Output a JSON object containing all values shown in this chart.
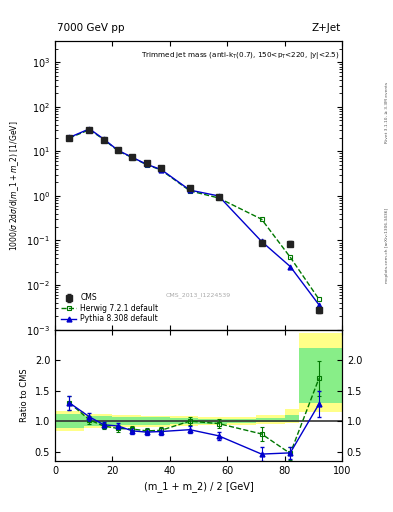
{
  "title_top": "7000 GeV pp",
  "title_right": "Z+Jet",
  "watermark": "CMS_2013_I1224539",
  "ylabel_ratio": "Ratio to CMS",
  "xlabel": "(m_1 + m_2) / 2 [GeV]",
  "right_label": "mcplots.cern.ch [arXiv:1306.3436]",
  "right_label2": "Rivet 3.1.10, ≥ 3.3M events",
  "x_main": [
    5,
    12,
    17,
    22,
    27,
    32,
    37,
    47,
    57,
    72,
    82,
    92
  ],
  "cms_y": [
    20.0,
    30.0,
    18.0,
    11.0,
    7.5,
    5.5,
    4.2,
    1.5,
    0.95,
    0.09,
    0.085,
    0.0028
  ],
  "cms_yerr": [
    1.5,
    2.0,
    1.2,
    0.7,
    0.5,
    0.4,
    0.3,
    0.1,
    0.07,
    0.012,
    0.01,
    0.0004
  ],
  "herwig_x": [
    5,
    12,
    17,
    22,
    27,
    32,
    37,
    47,
    57,
    72,
    82,
    92
  ],
  "herwig_y": [
    20.0,
    30.5,
    18.5,
    10.2,
    7.2,
    5.0,
    3.8,
    1.3,
    0.9,
    0.3,
    0.042,
    0.0048
  ],
  "pythia_x": [
    5,
    12,
    17,
    22,
    27,
    32,
    37,
    47,
    57,
    72,
    82,
    92
  ],
  "pythia_y": [
    20.5,
    32.0,
    18.8,
    10.5,
    7.3,
    5.1,
    3.9,
    1.35,
    1.0,
    0.095,
    0.026,
    0.0036
  ],
  "ratio_x": [
    5,
    12,
    17,
    22,
    27,
    32,
    37,
    47,
    57,
    72,
    82,
    92
  ],
  "herwig_ratio": [
    1.3,
    1.02,
    0.92,
    0.88,
    0.87,
    0.84,
    0.85,
    1.0,
    0.96,
    0.79,
    0.47,
    1.7
  ],
  "herwig_ratio_err": [
    0.12,
    0.06,
    0.05,
    0.05,
    0.05,
    0.05,
    0.05,
    0.06,
    0.07,
    0.12,
    0.1,
    0.28
  ],
  "pythia_ratio": [
    1.3,
    1.07,
    0.94,
    0.92,
    0.84,
    0.82,
    0.83,
    0.86,
    0.76,
    0.46,
    0.48,
    1.28
  ],
  "pythia_ratio_err": [
    0.12,
    0.06,
    0.05,
    0.05,
    0.05,
    0.05,
    0.05,
    0.06,
    0.07,
    0.12,
    0.1,
    0.22
  ],
  "band_x_edges": [
    0,
    10,
    20,
    30,
    40,
    50,
    60,
    70,
    80,
    85,
    100
  ],
  "yellow_lo": [
    0.84,
    0.88,
    0.9,
    0.91,
    0.92,
    0.93,
    0.94,
    0.96,
    0.97,
    1.15,
    1.15
  ],
  "yellow_hi": [
    1.16,
    1.12,
    1.1,
    1.09,
    1.08,
    1.07,
    1.07,
    1.1,
    1.2,
    2.45,
    2.45
  ],
  "green_lo": [
    0.88,
    0.92,
    0.93,
    0.94,
    0.95,
    0.96,
    0.97,
    0.98,
    0.99,
    1.3,
    1.3
  ],
  "green_hi": [
    1.12,
    1.08,
    1.07,
    1.06,
    1.05,
    1.04,
    1.03,
    1.05,
    1.1,
    2.2,
    2.2
  ],
  "ylim_main": [
    0.001,
    3000
  ],
  "ylim_ratio": [
    0.35,
    2.5
  ],
  "xlim": [
    0,
    100
  ],
  "cms_color": "#222222",
  "herwig_color": "#007700",
  "pythia_color": "#0000cc",
  "yellow_color": "#ffff88",
  "green_color": "#88ee88"
}
